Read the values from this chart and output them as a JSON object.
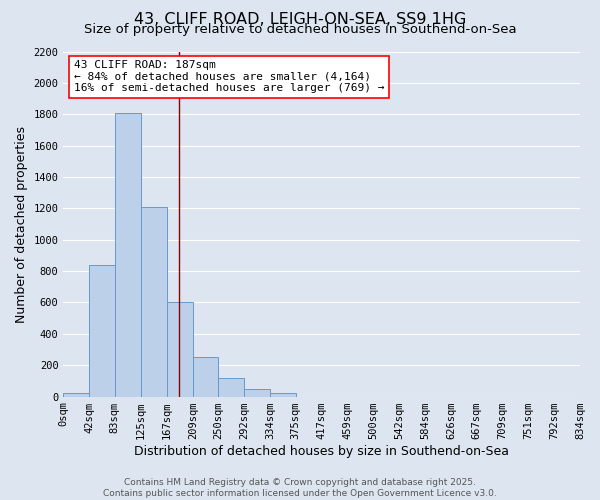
{
  "title": "43, CLIFF ROAD, LEIGH-ON-SEA, SS9 1HG",
  "subtitle": "Size of property relative to detached houses in Southend-on-Sea",
  "xlabel": "Distribution of detached houses by size in Southend-on-Sea",
  "ylabel": "Number of detached properties",
  "bin_edges": [
    0,
    42,
    83,
    125,
    167,
    209,
    250,
    292,
    334,
    375,
    417,
    459,
    500,
    542,
    584,
    626,
    667,
    709,
    751,
    792,
    834
  ],
  "bin_labels": [
    "0sqm",
    "42sqm",
    "83sqm",
    "125sqm",
    "167sqm",
    "209sqm",
    "250sqm",
    "292sqm",
    "334sqm",
    "375sqm",
    "417sqm",
    "459sqm",
    "500sqm",
    "542sqm",
    "584sqm",
    "626sqm",
    "667sqm",
    "709sqm",
    "751sqm",
    "792sqm",
    "834sqm"
  ],
  "counts": [
    25,
    840,
    1810,
    1210,
    600,
    255,
    120,
    50,
    25,
    0,
    0,
    0,
    0,
    0,
    0,
    0,
    0,
    0,
    0,
    0
  ],
  "bar_color": "#bdd0e9",
  "bar_edge_color": "#6699cc",
  "bg_color": "#dde6f0",
  "grid_color": "#ffffff",
  "ref_line_color": "#8b0000",
  "ref_line_x": 187,
  "ylim": [
    0,
    2200
  ],
  "yticks": [
    0,
    200,
    400,
    600,
    800,
    1000,
    1200,
    1400,
    1600,
    1800,
    2000,
    2200
  ],
  "annotation_title": "43 CLIFF ROAD: 187sqm",
  "annotation_line1": "← 84% of detached houses are smaller (4,164)",
  "annotation_line2": "16% of semi-detached houses are larger (769) →",
  "footer_line1": "Contains HM Land Registry data © Crown copyright and database right 2025.",
  "footer_line2": "Contains public sector information licensed under the Open Government Licence v3.0.",
  "title_fontsize": 11.5,
  "subtitle_fontsize": 9.5,
  "axis_label_fontsize": 9,
  "tick_fontsize": 7.5,
  "annotation_fontsize": 8,
  "footer_fontsize": 6.5
}
